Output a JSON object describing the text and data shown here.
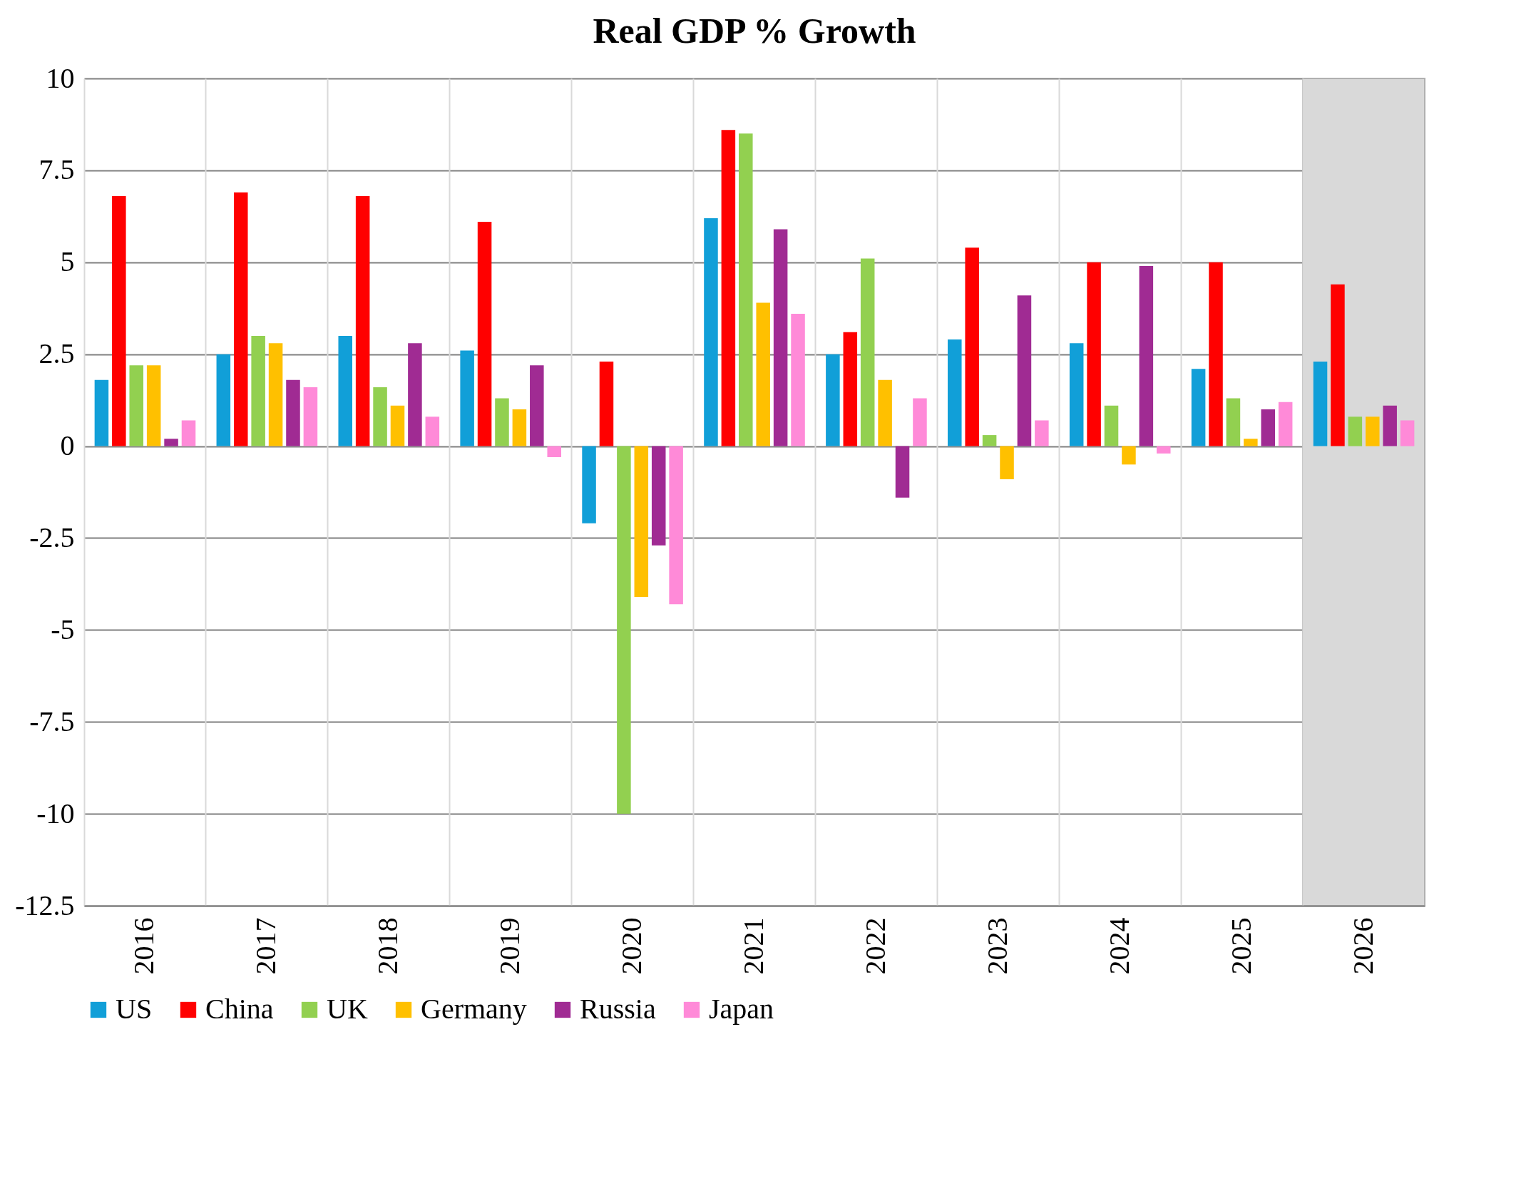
{
  "chart_data": {
    "type": "bar",
    "title": "Real GDP % Growth",
    "categories": [
      "2016",
      "2017",
      "2018",
      "2019",
      "2020",
      "2021",
      "2022",
      "2023",
      "2024",
      "2025",
      "2026"
    ],
    "series": [
      {
        "name": "US",
        "color": "#119fd8",
        "values": [
          1.8,
          2.5,
          3.0,
          2.6,
          -2.1,
          6.2,
          2.5,
          2.9,
          2.8,
          2.1,
          2.3
        ]
      },
      {
        "name": "China",
        "color": "#ff0000",
        "values": [
          6.8,
          6.9,
          6.8,
          6.1,
          2.3,
          8.6,
          3.1,
          5.4,
          5.0,
          5.0,
          4.4
        ]
      },
      {
        "name": "UK",
        "color": "#92d050",
        "values": [
          2.2,
          3.0,
          1.6,
          1.3,
          -10.0,
          8.5,
          5.1,
          0.3,
          1.1,
          1.3,
          0.8
        ]
      },
      {
        "name": "Germany",
        "color": "#ffc000",
        "values": [
          2.2,
          2.8,
          1.1,
          1.0,
          -4.1,
          3.9,
          1.8,
          -0.9,
          -0.5,
          0.2,
          0.8
        ]
      },
      {
        "name": "Russia",
        "color": "#a02b93",
        "values": [
          0.2,
          1.8,
          2.8,
          2.2,
          -2.7,
          5.9,
          -1.4,
          4.1,
          4.9,
          1.0,
          1.1
        ]
      },
      {
        "name": "Japan",
        "color": "#ff8ad8",
        "values": [
          0.7,
          1.6,
          0.8,
          -0.3,
          -4.3,
          3.6,
          1.3,
          0.7,
          -0.2,
          1.2,
          0.7
        ]
      }
    ],
    "ylim": [
      -12.5,
      10
    ],
    "yticks": [
      -12.5,
      -10,
      -7.5,
      -5,
      -2.5,
      0,
      2.5,
      5,
      7.5,
      10
    ],
    "bands": [
      {
        "axis": "x",
        "from": "2026",
        "to": "2026",
        "color": "#d9d9d9"
      }
    ],
    "grid": true,
    "legend": "bottom"
  }
}
